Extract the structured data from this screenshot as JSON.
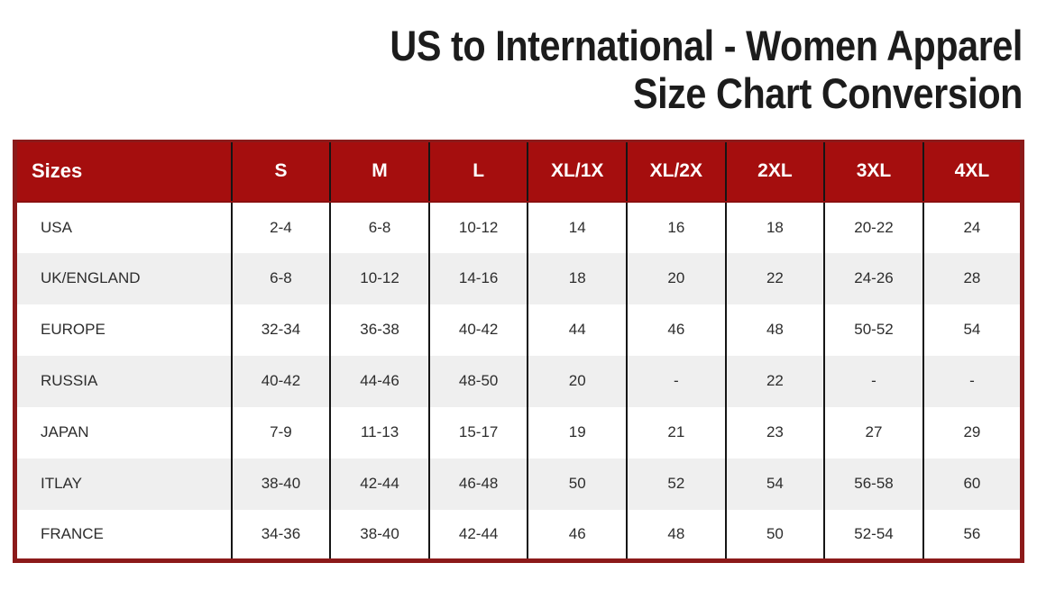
{
  "title": {
    "line1": "US to International - Women Apparel",
    "line2": "Size Chart Conversion"
  },
  "chart_data": {
    "type": "table",
    "title": "US to International - Women Apparel Size Chart Conversion",
    "columns": [
      "Sizes",
      "S",
      "M",
      "L",
      "XL/1X",
      "XL/2X",
      "2XL",
      "3XL",
      "4XL"
    ],
    "rows": [
      {
        "region": "USA",
        "values": [
          "2-4",
          "6-8",
          "10-12",
          "14",
          "16",
          "18",
          "20-22",
          "24"
        ]
      },
      {
        "region": "UK/ENGLAND",
        "values": [
          "6-8",
          "10-12",
          "14-16",
          "18",
          "20",
          "22",
          "24-26",
          "28"
        ]
      },
      {
        "region": "EUROPE",
        "values": [
          "32-34",
          "36-38",
          "40-42",
          "44",
          "46",
          "48",
          "50-52",
          "54"
        ]
      },
      {
        "region": "RUSSIA",
        "values": [
          "40-42",
          "44-46",
          "48-50",
          "20",
          "-",
          "22",
          "-",
          "-"
        ]
      },
      {
        "region": "JAPAN",
        "values": [
          "7-9",
          "11-13",
          "15-17",
          "19",
          "21",
          "23",
          "27",
          "29"
        ]
      },
      {
        "region": "ITLAY",
        "values": [
          "38-40",
          "42-44",
          "46-48",
          "50",
          "52",
          "54",
          "56-58",
          "60"
        ]
      },
      {
        "region": "FRANCE",
        "values": [
          "34-36",
          "38-40",
          "42-44",
          "46",
          "48",
          "50",
          "52-54",
          "56"
        ]
      }
    ]
  },
  "colors": {
    "header_bg": "#a50e0e",
    "table_border": "#8c1a1a",
    "stripe": "#efefef",
    "header_text": "#ffffff",
    "body_text": "#2d2d2d",
    "title_text": "#1c1c1c"
  }
}
